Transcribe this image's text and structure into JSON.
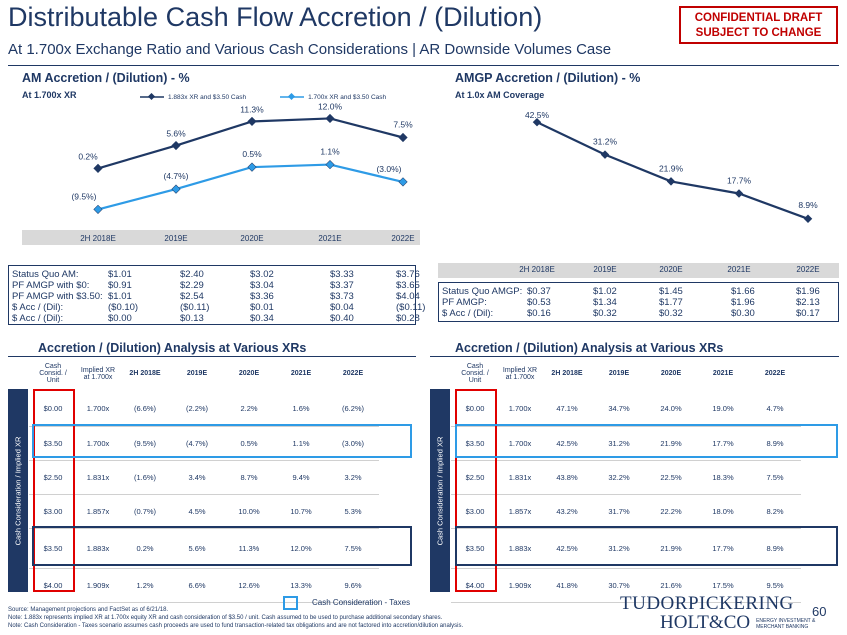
{
  "header": {
    "title": "Distributable Cash Flow Accretion / (Dilution)",
    "subtitle": "At 1.700x Exchange Ratio and Various Cash Considerations | AR Downside Volumes Case",
    "confidential_line1": "CONFIDENTIAL DRAFT",
    "confidential_line2": "SUBJECT TO CHANGE"
  },
  "colors": {
    "navy": "#1f3864",
    "light_blue": "#2e9be6",
    "red": "#e00000",
    "band": "#d9d9d9"
  },
  "am_chart": {
    "heading": "AM Accretion / (Dilution) - %",
    "subheading": "At 1.700x XR",
    "chart_data": {
      "type": "line",
      "categories": [
        "2H 2018E",
        "2019E",
        "2020E",
        "2021E",
        "2022E"
      ],
      "series": [
        {
          "name": "1.883x XR and $3.50 Cash",
          "values": [
            0.2,
            5.6,
            11.3,
            12.0,
            7.5
          ],
          "labels": [
            "0.2%",
            "5.6%",
            "11.3%",
            "12.0%",
            "7.5%"
          ],
          "color": "#1f3864"
        },
        {
          "name": "1.700x XR and $3.50 Cash",
          "values": [
            -9.5,
            -4.7,
            0.5,
            1.1,
            -3.0
          ],
          "labels": [
            "(9.5%)",
            "(4.7%)",
            "0.5%",
            "1.1%",
            "(3.0%)"
          ],
          "color": "#2e9be6"
        }
      ],
      "ylim": [
        -12,
        14
      ]
    },
    "stats": {
      "rows": [
        {
          "label": "Status Quo AM:",
          "values": [
            "$1.01",
            "$2.40",
            "$3.02",
            "$3.33",
            "$3.76"
          ]
        },
        {
          "label": "PF AMGP with $0:",
          "values": [
            "$0.91",
            "$2.29",
            "$3.04",
            "$3.37",
            "$3.65"
          ]
        },
        {
          "label": "PF AMGP with $3.50:",
          "values": [
            "$1.01",
            "$2.54",
            "$3.36",
            "$3.73",
            "$4.04"
          ]
        },
        {
          "label": "$ Acc / (Dil):",
          "values": [
            "($0.10)",
            "($0.11)",
            "$0.01",
            "$0.04",
            "($0.11)"
          ]
        },
        {
          "label": "$ Acc / (Dil):",
          "values": [
            "$0.00",
            "$0.13",
            "$0.34",
            "$0.40",
            "$0.28"
          ]
        }
      ]
    }
  },
  "amgp_chart": {
    "heading": "AMGP Accretion / (Dilution) - %",
    "subheading": "At 1.0x AM Coverage",
    "chart_data": {
      "type": "line",
      "categories": [
        "2H 2018E",
        "2019E",
        "2020E",
        "2021E",
        "2022E"
      ],
      "series": [
        {
          "values": [
            42.5,
            31.2,
            21.9,
            17.7,
            8.9
          ],
          "labels": [
            "42.5%",
            "31.2%",
            "21.9%",
            "17.7%",
            "8.9%"
          ],
          "color": "#1f3864"
        }
      ],
      "ylim": [
        5,
        45
      ]
    },
    "stats": {
      "rows": [
        {
          "label": "Status Quo AMGP:",
          "values": [
            "$0.37",
            "$1.02",
            "$1.45",
            "$1.66",
            "$1.96"
          ]
        },
        {
          "label": "PF AMGP:",
          "values": [
            "$0.53",
            "$1.34",
            "$1.77",
            "$1.96",
            "$2.13"
          ]
        },
        {
          "label": "$ Acc / (Dil):",
          "values": [
            "$0.16",
            "$0.32",
            "$0.32",
            "$0.30",
            "$0.17"
          ]
        }
      ]
    }
  },
  "tables": {
    "title": "Accretion / (Dilution) Analysis at Various XRs",
    "col_cash_l1": "Cash",
    "col_cash_l2": "Consid. /",
    "col_cash_l3": "Unit",
    "col_xr_l1": "Implied XR",
    "col_xr_l2": "at 1.700x",
    "years": [
      "2H 2018E",
      "2019E",
      "2020E",
      "2021E",
      "2022E"
    ],
    "sidebar_label": "Cash Consideration / Implied XR",
    "am_rows": [
      {
        "cash": "$0.00",
        "xr": "1.700x",
        "vals": [
          "(6.6%)",
          "(2.2%)",
          "2.2%",
          "1.6%",
          "(6.2%)"
        ]
      },
      {
        "cash": "$3.50",
        "xr": "1.700x",
        "vals": [
          "(9.5%)",
          "(4.7%)",
          "0.5%",
          "1.1%",
          "(3.0%)"
        ]
      },
      {
        "cash": "$2.50",
        "xr": "1.831x",
        "vals": [
          "(1.6%)",
          "3.4%",
          "8.7%",
          "9.4%",
          "3.2%"
        ]
      },
      {
        "cash": "$3.00",
        "xr": "1.857x",
        "vals": [
          "(0.7%)",
          "4.5%",
          "10.0%",
          "10.7%",
          "5.3%"
        ]
      },
      {
        "cash": "$3.50",
        "xr": "1.883x",
        "vals": [
          "0.2%",
          "5.6%",
          "11.3%",
          "12.0%",
          "7.5%"
        ]
      },
      {
        "cash": "$4.00",
        "xr": "1.909x",
        "vals": [
          "1.2%",
          "6.6%",
          "12.6%",
          "13.3%",
          "9.6%"
        ]
      }
    ],
    "amgp_rows": [
      {
        "cash": "$0.00",
        "xr": "1.700x",
        "vals": [
          "47.1%",
          "34.7%",
          "24.0%",
          "19.0%",
          "4.7%"
        ]
      },
      {
        "cash": "$3.50",
        "xr": "1.700x",
        "vals": [
          "42.5%",
          "31.2%",
          "21.9%",
          "17.7%",
          "8.9%"
        ]
      },
      {
        "cash": "$2.50",
        "xr": "1.831x",
        "vals": [
          "43.8%",
          "32.2%",
          "22.5%",
          "18.3%",
          "7.5%"
        ]
      },
      {
        "cash": "$3.00",
        "xr": "1.857x",
        "vals": [
          "43.2%",
          "31.7%",
          "22.2%",
          "18.0%",
          "8.2%"
        ]
      },
      {
        "cash": "$3.50",
        "xr": "1.883x",
        "vals": [
          "42.5%",
          "31.2%",
          "21.9%",
          "17.7%",
          "8.9%"
        ]
      },
      {
        "cash": "$4.00",
        "xr": "1.909x",
        "vals": [
          "41.8%",
          "30.7%",
          "21.6%",
          "17.5%",
          "9.5%"
        ]
      }
    ]
  },
  "footer": {
    "legend_label": "Cash Consideration - Taxes",
    "source": "Source: Management projections and FactSet as of 6/21/18.",
    "note1": "Note: 1.883x represents implied XR at 1.700x equity XR and cash consideration of $3.50 / unit. Cash assumed to be used to purchase additional secondary shares.",
    "note2": "Note: Cash Consideration - Taxes scenario assumes cash proceeds are used to fund transaction-related tax obligations and are not factored into accretion/dilution analysis.",
    "logo_line1": "TUDORPICKERING",
    "logo_line2": "HOLT&CO",
    "logo_sub1": "ENERGY INVESTMENT &",
    "logo_sub2": "MERCHANT BANKING",
    "page_number": "60"
  }
}
